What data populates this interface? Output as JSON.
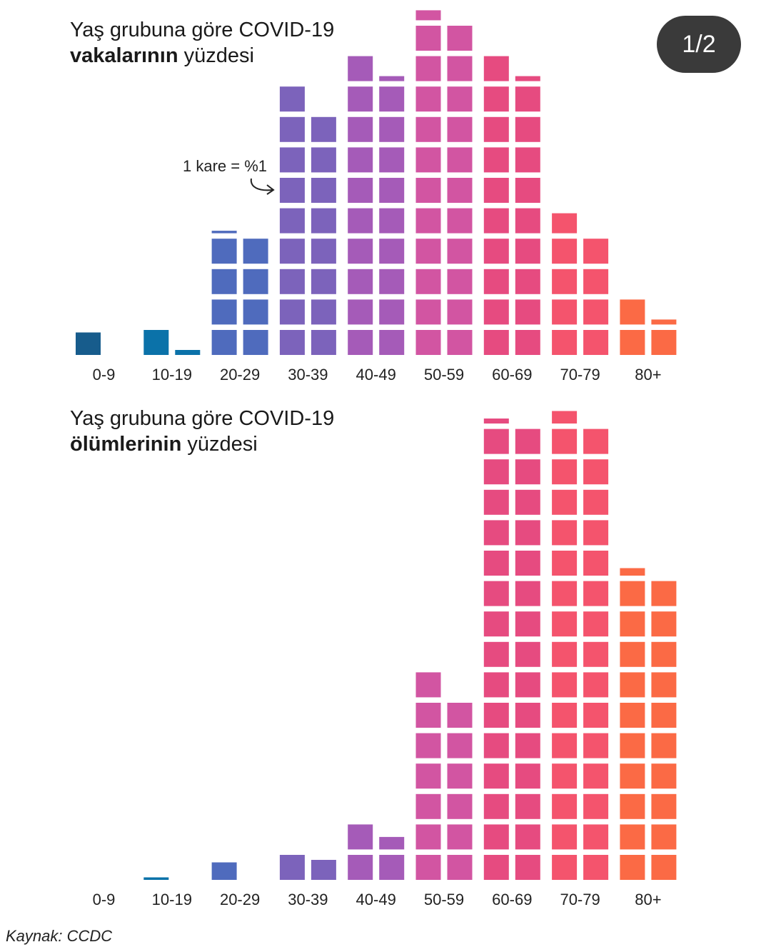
{
  "page_indicator": "1/2",
  "source": "Kaynak: CCDC",
  "annotation": "1 kare = %1",
  "chart_data": [
    {
      "type": "waffle-bar",
      "title_line1": "Yaş grubuna göre COVID-19",
      "title_bold": "vakalarının",
      "title_rest": "yüzdesi",
      "categories": [
        "0-9",
        "10-19",
        "20-29",
        "30-39",
        "40-49",
        "50-59",
        "60-69",
        "70-79",
        "80+"
      ],
      "values": [
        0.9,
        1.2,
        8.1,
        17.0,
        19.2,
        22.4,
        19.2,
        8.8,
        3.2
      ],
      "unit": "%",
      "colors": [
        "#175c8c",
        "#0b72a9",
        "#4f6bbd",
        "#7c63bb",
        "#a55bb8",
        "#d255a2",
        "#e64b80",
        "#f4546d",
        "#fb6a45"
      ]
    },
    {
      "type": "waffle-bar",
      "title_line1": "Yaş grubuna göre COVID-19",
      "title_bold": "ölümlerinin",
      "title_rest": "yüzdesi",
      "categories": [
        "0-9",
        "10-19",
        "20-29",
        "30-39",
        "40-49",
        "50-59",
        "60-69",
        "70-79",
        "80+"
      ],
      "values": [
        0,
        0.1,
        0.7,
        1.8,
        3.5,
        13.0,
        30.2,
        30.5,
        20.3
      ],
      "unit": "%",
      "colors": [
        "#175c8c",
        "#0b72a9",
        "#4f6bbd",
        "#7c63bb",
        "#a55bb8",
        "#d255a2",
        "#e64b80",
        "#f4546d",
        "#fb6a45"
      ]
    }
  ]
}
